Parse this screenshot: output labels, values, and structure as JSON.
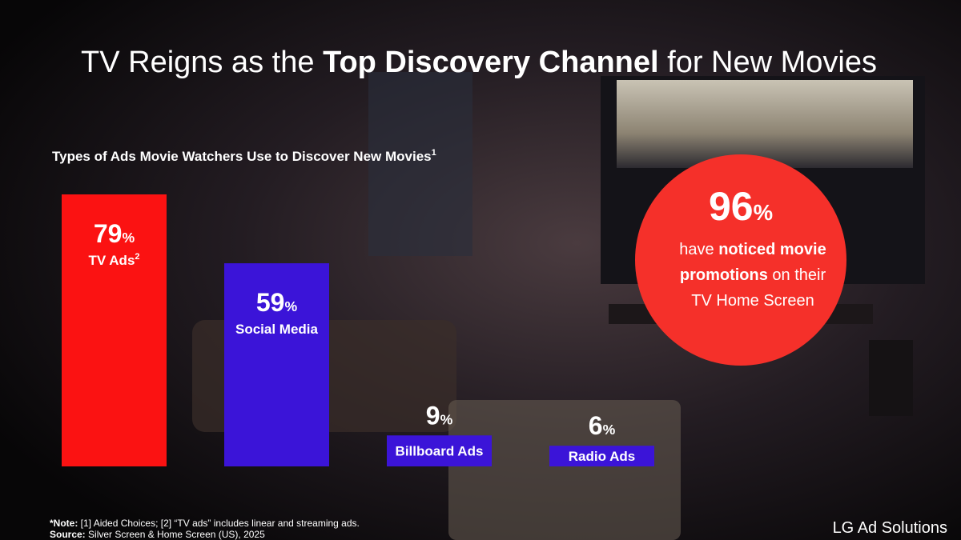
{
  "headline": [
    "TV Reigns as the ",
    "Top Discovery Channel",
    " for New Movies"
  ],
  "chart_data": {
    "type": "bar",
    "subtitle": "Types of Ads Movie Watchers Use to Discover New Movies",
    "subtitle_superscript": "1",
    "categories": [
      "TV Ads",
      "Social Media",
      "Billboard Ads",
      "Radio Ads"
    ],
    "category_superscripts": [
      "2",
      null,
      null,
      null
    ],
    "values": [
      79,
      59,
      9,
      6
    ],
    "value_labels": [
      "79%",
      "59%",
      "9%",
      "6%"
    ],
    "colors": [
      "#fb1212",
      "#3b14d8",
      "#3b14d8",
      "#3b14d8"
    ]
  },
  "callout": {
    "stat": "96%",
    "lines": [
      [
        "have ",
        "noticed movie"
      ],
      [
        "promotions",
        " on their"
      ],
      [
        "TV Home Screen"
      ]
    ]
  },
  "footer": {
    "note_label": "*Note:",
    "note": " [1] Aided Choices; [2] “TV ads” includes linear and streaming ads.",
    "source_label": "Source:",
    "source": " Silver Screen & Home Screen (US), 2025",
    "brand": "LG Ad Solutions"
  }
}
